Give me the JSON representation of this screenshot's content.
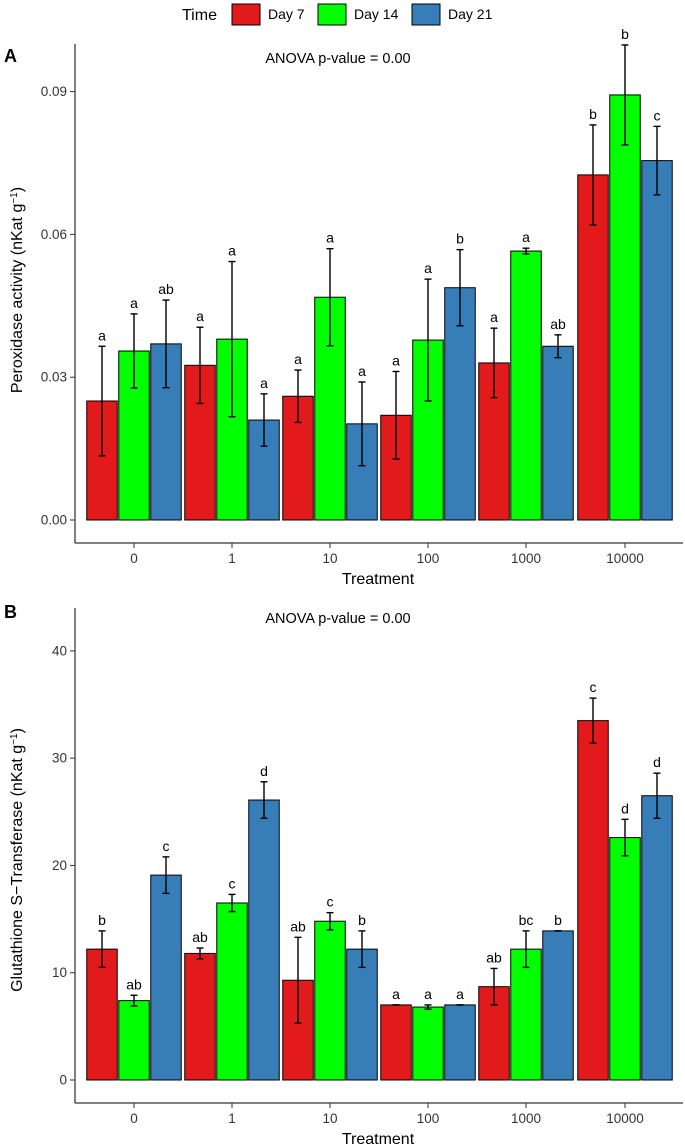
{
  "legend": {
    "title": "Time",
    "items": [
      {
        "label": "Day 7",
        "color": "#e31a1c"
      },
      {
        "label": "Day 14",
        "color": "#00ff00"
      },
      {
        "label": "Day 21",
        "color": "#377eb8"
      }
    ]
  },
  "chart_data": [
    {
      "type": "bar",
      "panel_label": "A",
      "annotation": "ANOVA p-value = 0.00",
      "xlabel": "Treatment",
      "ylabel": "Peroxidase activity (nKat g",
      "ylabel_superscript": "−1",
      "ylabel_close": ")",
      "ylim": [
        0,
        0.1
      ],
      "yticks": [
        0,
        0.03,
        0.06,
        0.09
      ],
      "ytick_labels": [
        "0.00",
        "0.03",
        "0.06",
        "0.09"
      ],
      "categories": [
        "0",
        "1",
        "10",
        "100",
        "1000",
        "10000"
      ],
      "series": [
        {
          "name": "Day 7",
          "values": [
            0.025,
            0.0325,
            0.026,
            0.022,
            0.033,
            0.0725
          ],
          "errors": [
            0.0115,
            0.008,
            0.0055,
            0.0092,
            0.0073,
            0.0105
          ],
          "letters": [
            "a",
            "a",
            "a",
            "a",
            "a",
            "b"
          ]
        },
        {
          "name": "Day 14",
          "values": [
            0.0355,
            0.038,
            0.0468,
            0.0378,
            0.0565,
            0.0893
          ],
          "errors": [
            0.0078,
            0.0163,
            0.0102,
            0.0128,
            0.0006,
            0.0105
          ],
          "letters": [
            "a",
            "a",
            "a",
            "a",
            "a",
            "b"
          ]
        },
        {
          "name": "Day 21",
          "values": [
            0.037,
            0.021,
            0.0202,
            0.0488,
            0.0365,
            0.0755
          ],
          "errors": [
            0.0092,
            0.0055,
            0.0088,
            0.008,
            0.0024,
            0.0072
          ],
          "letters": [
            "ab",
            "a",
            "a",
            "b",
            "ab",
            "c"
          ]
        }
      ]
    },
    {
      "type": "bar",
      "panel_label": "B",
      "annotation": "ANOVA p-value = 0.00",
      "xlabel": "Treatment",
      "ylabel": "Glutathione S−Transferase (nKat g",
      "ylabel_superscript": "−1",
      "ylabel_close": ")",
      "ylim": [
        0,
        44
      ],
      "yticks": [
        0,
        10,
        20,
        30,
        40
      ],
      "ytick_labels": [
        "0",
        "10",
        "20",
        "30",
        "40"
      ],
      "categories": [
        "0",
        "1",
        "10",
        "100",
        "1000",
        "10000"
      ],
      "series": [
        {
          "name": "Day 7",
          "values": [
            12.2,
            11.8,
            9.3,
            7.0,
            8.7,
            33.5
          ],
          "errors": [
            1.7,
            0.5,
            4.0,
            0,
            1.7,
            2.1
          ],
          "letters": [
            "b",
            "ab",
            "ab",
            "a",
            "ab",
            "c"
          ]
        },
        {
          "name": "Day 14",
          "values": [
            7.4,
            16.5,
            14.8,
            6.8,
            12.2,
            22.6
          ],
          "errors": [
            0.5,
            0.8,
            0.8,
            0.2,
            1.7,
            1.7
          ],
          "letters": [
            "ab",
            "c",
            "c",
            "a",
            "bc",
            "d"
          ]
        },
        {
          "name": "Day 21",
          "values": [
            19.1,
            26.1,
            12.2,
            7.0,
            13.9,
            26.5
          ],
          "errors": [
            1.7,
            1.7,
            1.7,
            0,
            0,
            2.1
          ],
          "letters": [
            "c",
            "d",
            "b",
            "a",
            "b",
            "d"
          ]
        }
      ]
    }
  ]
}
